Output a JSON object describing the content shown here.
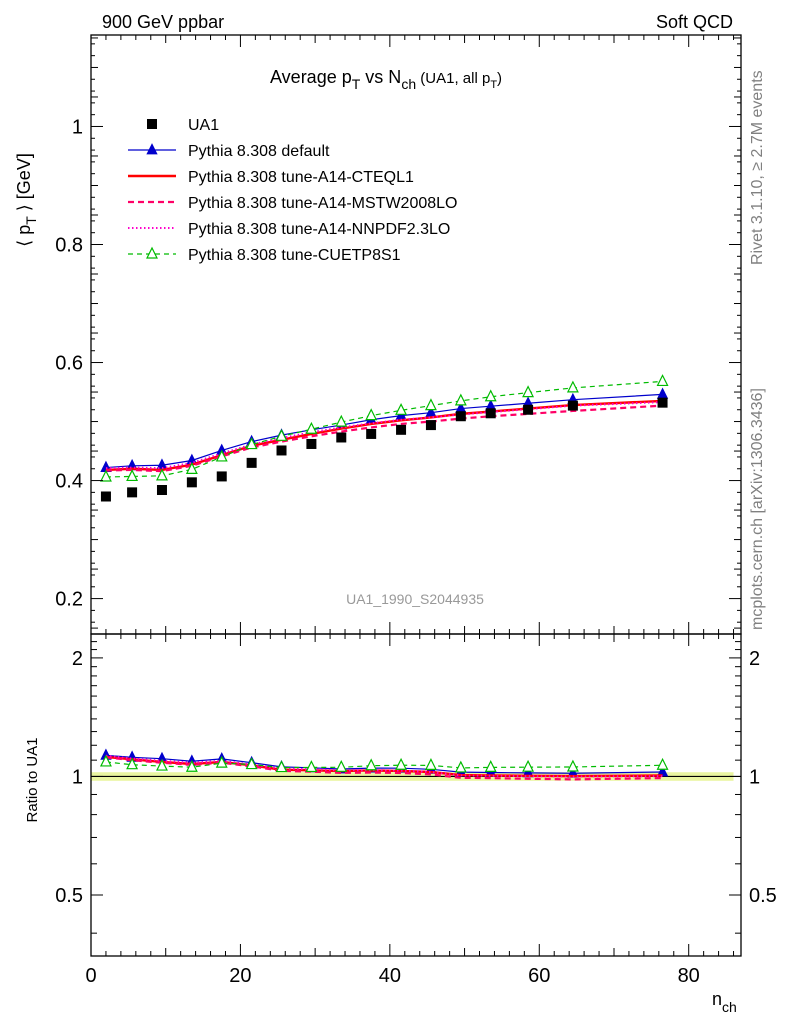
{
  "header": {
    "left": "900 GeV ppbar",
    "right": "Soft QCD"
  },
  "side_labels": {
    "top": "Rivet 3.1.10, ≥ 2.7M events",
    "bottom": "mcplots.cern.ch [arXiv:1306.3436]"
  },
  "chart_data": {
    "type": "line",
    "title": {
      "main": "Average p",
      "main_sub": "T",
      "mid": " vs N",
      "mid_sub": "ch",
      "paren": " (UA1, all p",
      "paren_sub": "T",
      "paren_end": ")"
    },
    "watermark": "UA1_1990_S2044935",
    "xlabel": {
      "main": "n",
      "sub": "ch"
    },
    "ylabel": {
      "open": "⟨ p",
      "sub": "T",
      "close": " ⟩ [GeV]"
    },
    "ratio_ylabel": "Ratio to UA1",
    "xlim": [
      0,
      87
    ],
    "ylim": [
      0.14,
      1.155
    ],
    "ratio_ylim": [
      0.35,
      2.3
    ],
    "x_ticks": [
      0,
      20,
      40,
      60,
      80
    ],
    "y_ticks": [
      0.2,
      0.4,
      0.6,
      0.8,
      1
    ],
    "ratio_y_ticks": [
      0.5,
      1,
      2
    ],
    "x": [
      2,
      5.5,
      9.5,
      13.5,
      17.5,
      21.5,
      25.5,
      29.5,
      33.5,
      37.5,
      41.5,
      45.5,
      49.5,
      53.5,
      58.5,
      64.5,
      76.5
    ],
    "ua1": {
      "name": "UA1",
      "values": [
        0.373,
        0.38,
        0.384,
        0.397,
        0.407,
        0.43,
        0.451,
        0.462,
        0.473,
        0.479,
        0.486,
        0.494,
        0.509,
        0.514,
        0.52,
        0.527,
        0.532
      ]
    },
    "series": [
      {
        "name": "Pythia 8.308 default",
        "color": "#0000cc",
        "style": "solid-triangle",
        "values": [
          0.422,
          0.425,
          0.426,
          0.434,
          0.451,
          0.466,
          0.477,
          0.486,
          0.494,
          0.503,
          0.51,
          0.515,
          0.522,
          0.526,
          0.531,
          0.537,
          0.546
        ]
      },
      {
        "name": "Pythia 8.308 tune-A14-CTEQL1",
        "color": "#ff0000",
        "style": "solid-thick",
        "values": [
          0.418,
          0.42,
          0.418,
          0.427,
          0.443,
          0.459,
          0.469,
          0.479,
          0.488,
          0.496,
          0.502,
          0.507,
          0.513,
          0.517,
          0.522,
          0.528,
          0.535
        ]
      },
      {
        "name": "Pythia 8.308 tune-A14-MSTW2008LO",
        "color": "#ff0066",
        "style": "dashed",
        "values": [
          0.417,
          0.418,
          0.416,
          0.425,
          0.441,
          0.456,
          0.466,
          0.475,
          0.483,
          0.49,
          0.496,
          0.5,
          0.505,
          0.509,
          0.513,
          0.518,
          0.527
        ]
      },
      {
        "name": "Pythia 8.308 tune-A14-NNPDF2.3LO",
        "color": "#ff00cc",
        "style": "dotted",
        "values": [
          0.421,
          0.422,
          0.421,
          0.43,
          0.446,
          0.461,
          0.472,
          0.482,
          0.49,
          0.497,
          0.503,
          0.507,
          0.512,
          0.516,
          0.521,
          0.527,
          0.533
        ]
      },
      {
        "name": "Pythia 8.308 tune-CUETP8S1",
        "color": "#00bb00",
        "style": "dashed-open-triangle",
        "values": [
          0.406,
          0.407,
          0.408,
          0.419,
          0.44,
          0.461,
          0.475,
          0.487,
          0.499,
          0.51,
          0.519,
          0.527,
          0.535,
          0.542,
          0.549,
          0.557,
          0.568
        ]
      }
    ]
  }
}
